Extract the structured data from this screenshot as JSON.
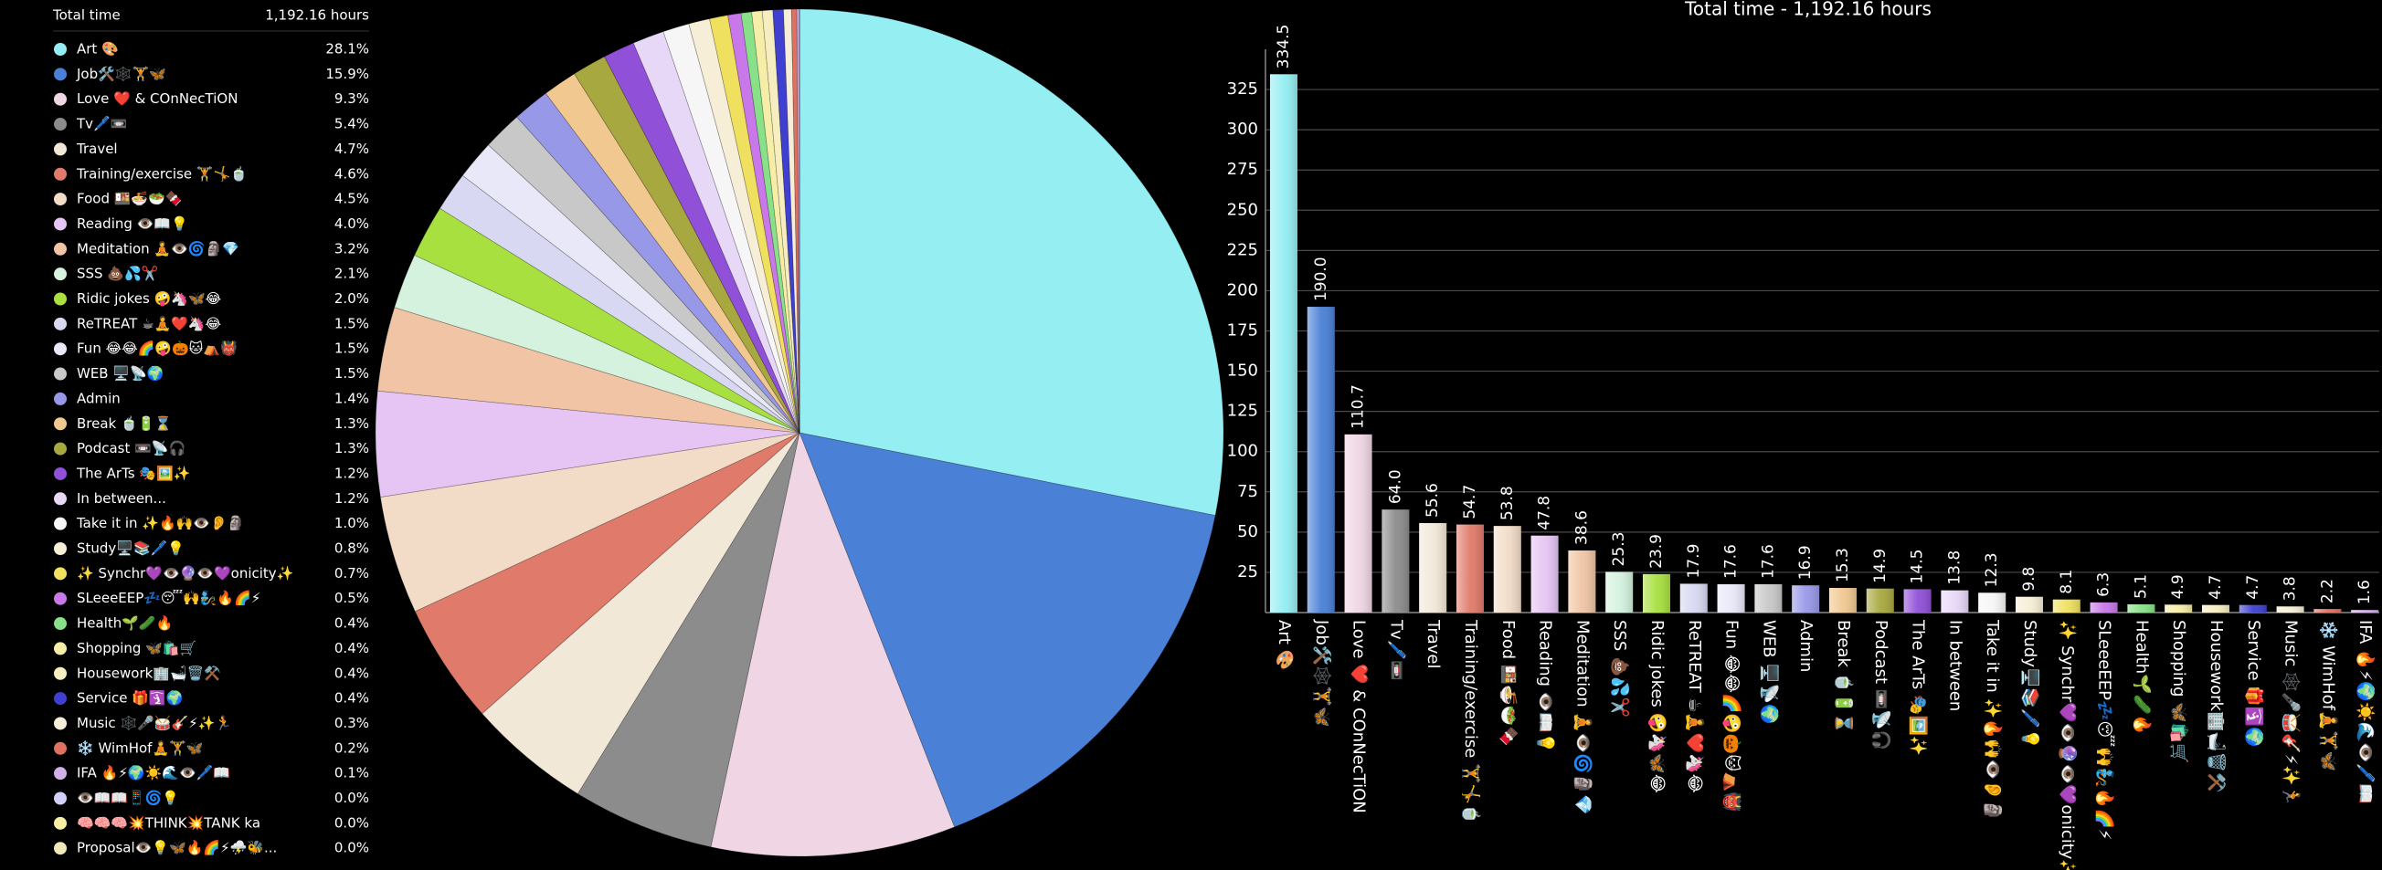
{
  "chart_data": [
    {
      "type": "pie",
      "title": "Total time",
      "total_label": "1,192.16 hours",
      "categories": [
        "Art 🎨",
        "Job🛠️🕸️🏋️🦋",
        "Love ❤️ & COnNecTiON",
        "Tv🖊️📼",
        "Travel",
        "Training/exercise 🏋️🤸🍵",
        "Food 🍱🍜🥗🍫",
        "Reading 👁️📖💡",
        "Meditation 🧘👁️🌀🗿💎",
        "SSS 💩💦✂️",
        "Ridic jokes 🤪🦄🦋😂",
        "ReTREAT ☕🧘❤️🦄😂",
        "Fun 😂😂🌈🤪🎃🐱⛺👹",
        "WEB 🖥️📡🌍",
        "Admin",
        "Break 🍵🔋⌛",
        "Podcast 📼📡🎧",
        "The ArTs 🎭🖼️✨",
        "In between...",
        "Take it in ✨🔥🙌👁️👂🗿",
        "Study🖥️📚🖊️💡",
        "✨ Synchr💜👁️🔮👁️💜onicity✨",
        "SLeeeEEP💤😴🙌🧞🔥🌈⚡",
        "Health🌱🥒🔥",
        "Shopping 🦋🛍️🛒",
        "Housework🏢🛁🗑️⚒️",
        "Service 🎁🛐🌍",
        "Music 🕸️🎤🥁🎸⚡✨🏃",
        "❄️ WimHof🧘🏋️🦋",
        "IFA 🔥⚡🌍☀️🌊👁️🖊️📖",
        "👁️📖📖📱🌀💡",
        "🧠🧠🧠💥THINK💥TANK ka",
        "Proposal👁️💡🦋🔥🌈⚡⛈️🐝..."
      ],
      "values": [
        28.1,
        15.9,
        9.3,
        5.4,
        4.7,
        4.6,
        4.5,
        4.0,
        3.2,
        2.1,
        2.0,
        1.5,
        1.5,
        1.5,
        1.4,
        1.3,
        1.3,
        1.2,
        1.2,
        1.0,
        0.8,
        0.7,
        0.5,
        0.4,
        0.4,
        0.4,
        0.4,
        0.3,
        0.2,
        0.1,
        0.0,
        0.0,
        0.0
      ],
      "value_labels": [
        "28.1%",
        "15.9%",
        "9.3%",
        "5.4%",
        "4.7%",
        "4.6%",
        "4.5%",
        "4.0%",
        "3.2%",
        "2.1%",
        "2.0%",
        "1.5%",
        "1.5%",
        "1.5%",
        "1.4%",
        "1.3%",
        "1.3%",
        "1.2%",
        "1.2%",
        "1.0%",
        "0.8%",
        "0.7%",
        "0.5%",
        "0.4%",
        "0.4%",
        "0.4%",
        "0.4%",
        "0.3%",
        "0.2%",
        "0.1%",
        "0.0%",
        "0.0%",
        "0.0%"
      ],
      "colors": [
        "#94eef2",
        "#4a80d6",
        "#f0d6e4",
        "#8c8c8c",
        "#f2e8d8",
        "#e07a6a",
        "#f2dcc8",
        "#e6c4f4",
        "#f0c4a4",
        "#d4f2de",
        "#a8e040",
        "#d8d8f2",
        "#e8e8f8",
        "#c8c8c8",
        "#9898e8",
        "#f0c890",
        "#a8a840",
        "#9050d8",
        "#e8d8f8",
        "#f6f6f6",
        "#f6eed6",
        "#f0e060",
        "#c878e8",
        "#88e088",
        "#f6eea8",
        "#f6eec0",
        "#4040d0",
        "#f6eed8",
        "#e07060",
        "#d0b0e8",
        "#d0d0f8",
        "#f6eea0",
        "#f0e8b8"
      ]
    },
    {
      "type": "bar",
      "title": "Total time - 1,192.16 hours",
      "categories": [
        "Art 🎨",
        "Job🛠️🕸️🏋️🦋",
        "Love ❤️ & COnNecTiON",
        "Tv🖊️📼",
        "Travel",
        "Training/exercise 🏋️🤸🍵",
        "Food 🍱🍜🥗🍫",
        "Reading 👁️📖💡",
        "Meditation 🧘👁️🌀🗿💎",
        "SSS 💩💦✂️",
        "Ridic jokes 🤪🦄🦋😂",
        "ReTREAT ☕🧘❤️🦄😂",
        "Fun 😂😂🌈🤪🎃🐱⛺👹",
        "WEB 🖥️📡🌍",
        "Admin",
        "Break 🍵🔋⌛",
        "Podcast 📼📡🎧",
        "The ArTs 🎭🖼️✨",
        "In between",
        "Take it in ✨🔥🙌👁️👂🗿",
        "Study🖥️📚🖊️💡",
        "✨ Synchr💜👁️🔮👁️💜onicity✨",
        "SLeeeEEP💤😴🙌🧞🔥🌈⚡",
        "Health🌱🥒🔥",
        "Shopping 🦋🛍️🛒",
        "Housework🏢🛁🗑️⚒️",
        "Service 🎁🛐🌍",
        "Music 🕸️🎤🥁🎸⚡✨🏃",
        "❄️ WimHof🧘🏋️🦋",
        "IFA 🔥⚡🌍☀️🌊👁️🖊️📖"
      ],
      "values": [
        334.5,
        190.0,
        110.7,
        64.0,
        55.6,
        54.7,
        53.8,
        47.8,
        38.6,
        25.3,
        23.9,
        17.9,
        17.6,
        17.6,
        16.9,
        15.3,
        14.9,
        14.5,
        13.8,
        12.3,
        9.8,
        8.1,
        6.3,
        5.1,
        4.9,
        4.7,
        4.7,
        3.8,
        2.2,
        1.6
      ],
      "value_labels": [
        "334.5",
        "190.0",
        "110.7",
        "64.0",
        "55.6",
        "54.7",
        "53.8",
        "47.8",
        "38.6",
        "25.3",
        "23.9",
        "17.9",
        "17.6",
        "17.6",
        "16.9",
        "15.3",
        "14.9",
        "14.5",
        "13.8",
        "12.3",
        "9.8",
        "8.1",
        "6.3",
        "5.1",
        "4.9",
        "4.7",
        "4.7",
        "3.8",
        "2.2",
        "1.6"
      ],
      "ylim": [
        0,
        350
      ],
      "yticks": [
        25,
        50,
        75,
        100,
        125,
        150,
        175,
        200,
        225,
        250,
        275,
        300,
        325
      ],
      "grid": true
    }
  ]
}
